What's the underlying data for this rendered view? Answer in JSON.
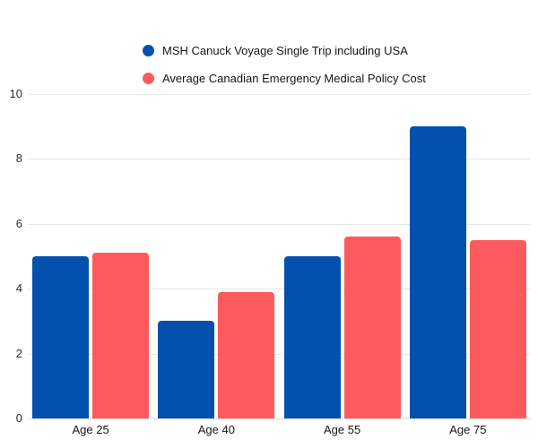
{
  "chart_data": {
    "type": "bar",
    "categories": [
      "Age 25",
      "Age 40",
      "Age 55",
      "Age 75"
    ],
    "series": [
      {
        "name": "MSH Canuck Voyage Single Trip including USA",
        "color": "#0450ae",
        "values": [
          5.0,
          3.0,
          5.0,
          9.0
        ]
      },
      {
        "name": "Average Canadian Emergency Medical Policy Cost",
        "color": "#fd5a5d",
        "values": [
          5.1,
          3.9,
          5.6,
          5.5
        ]
      }
    ],
    "title": "",
    "xlabel": "",
    "ylabel": "",
    "ylim": [
      0,
      10
    ],
    "yticks": [
      0,
      2,
      4,
      6,
      8,
      10
    ],
    "grid": true,
    "legend_position": "top"
  },
  "colors": {
    "background": "#ffffff",
    "gridline": "#e8e8e8",
    "axis_line": "#dcdcdc",
    "tick_text": "#2a2a2a",
    "label_text": "#161616"
  }
}
